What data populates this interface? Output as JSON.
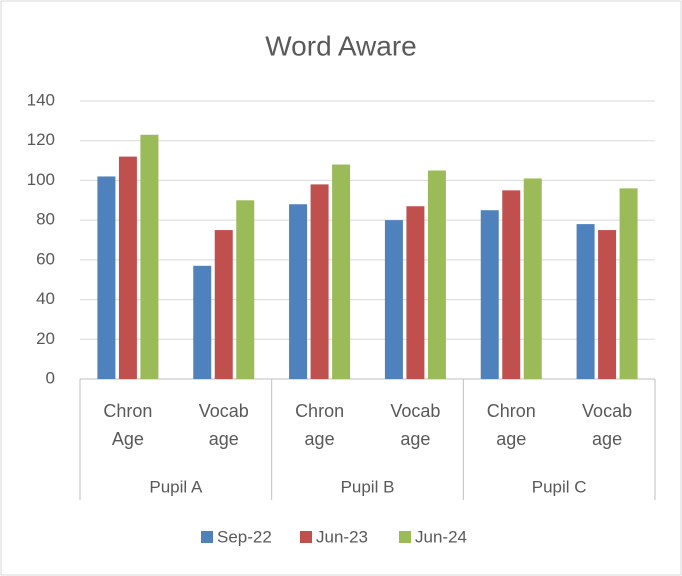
{
  "chart_data": {
    "type": "bar",
    "title": "Word Aware",
    "categories": [
      "Chron Age",
      "Vocab age",
      "Chron age",
      "Vocab age",
      "Chron age",
      "Vocab age"
    ],
    "groups": [
      "Pupil A",
      "Pupil B",
      "Pupil C"
    ],
    "series": [
      {
        "name": "Sep-22",
        "color": "#4f81bd",
        "values": [
          102,
          57,
          88,
          80,
          85,
          78
        ]
      },
      {
        "name": "Jun-23",
        "color": "#c0504d",
        "values": [
          112,
          75,
          98,
          87,
          95,
          75
        ]
      },
      {
        "name": "Jun-24",
        "color": "#9bbb59",
        "values": [
          123,
          90,
          108,
          105,
          101,
          96
        ]
      }
    ],
    "ylim": [
      0,
      140
    ],
    "yticks": [
      0,
      20,
      40,
      60,
      80,
      100,
      120,
      140
    ],
    "grid": true,
    "legend": "bottom"
  }
}
